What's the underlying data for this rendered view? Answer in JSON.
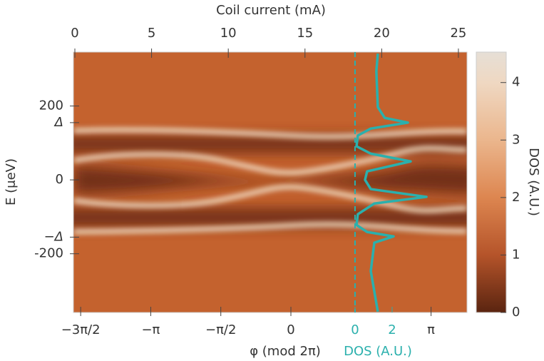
{
  "chart_data": {
    "type": "heatmap",
    "x_label": "φ (mod 2π)",
    "x2_label": "Coil current (mA)",
    "y_label": "E (μeV)",
    "xlim": [
      -4.874,
      3.947
    ],
    "xticks": [
      {
        "value": -4.712,
        "label": "−3π/2"
      },
      {
        "value": -3.1416,
        "label": "−π"
      },
      {
        "value": -1.5708,
        "label": "−π/2"
      },
      0,
      {
        "value": 3.1416,
        "label": "π"
      }
    ],
    "x2lim": [
      -0.093,
      25.56
    ],
    "x2ticks": [
      0,
      5,
      10,
      15,
      20,
      25
    ],
    "ylim": [
      -359,
      346
    ],
    "yticks": [
      200,
      {
        "value": 155,
        "label": "Δ"
      },
      0,
      {
        "value": -155,
        "label": "−Δ"
      },
      -200
    ],
    "x3lim": [
      -15.19,
      6.04
    ],
    "x3ticks": [
      0,
      2
    ],
    "colorbar": {
      "label": "DOS (A.U.)",
      "lim": [
        0,
        4.53
      ],
      "ticks": [
        0,
        1,
        2,
        3,
        4
      ],
      "colormap": [
        {
          "value": 0,
          "color": "#5a2410"
        },
        {
          "value": 1,
          "color": "#b5542a"
        },
        {
          "value": 2,
          "color": "#dd8650"
        },
        {
          "value": 3,
          "color": "#ebb68d"
        },
        {
          "value": 4,
          "color": "#efd8c2"
        },
        {
          "value": 4.53,
          "color": "#e6dfd6"
        }
      ]
    },
    "series": [
      {
        "name": "DOS (A.U.)",
        "color": "#2bb0ad",
        "axis": "x3",
        "energy": [
          342,
          294,
          197,
          168,
          155,
          139,
          120,
          91,
          71,
          50,
          23,
          0,
          -25,
          -46,
          -64,
          -93,
          -122,
          -141,
          -153,
          -170,
          -247,
          -357
        ],
        "values": [
          1.23,
          1.15,
          1.23,
          1.6,
          2.85,
          0.85,
          0.15,
          0.08,
          0.85,
          3.0,
          0.65,
          0.54,
          0.85,
          3.85,
          1.04,
          0.15,
          0.08,
          0.65,
          2.08,
          1.04,
          0.85,
          1.23
        ]
      }
    ]
  }
}
